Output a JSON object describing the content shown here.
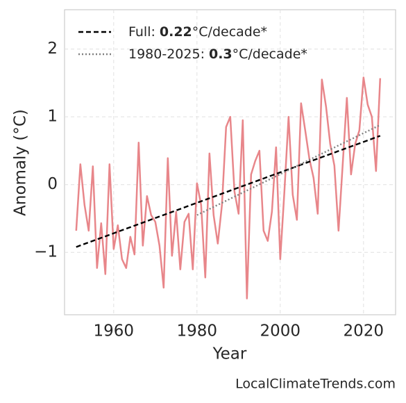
{
  "chart_data": {
    "type": "line",
    "xlabel": "Year",
    "ylabel": "Anomaly (°C)",
    "source": "LocalClimateTrends.com",
    "x": [
      1951,
      1952,
      1953,
      1954,
      1955,
      1956,
      1957,
      1958,
      1959,
      1960,
      1961,
      1962,
      1963,
      1964,
      1965,
      1966,
      1967,
      1968,
      1969,
      1970,
      1971,
      1972,
      1973,
      1974,
      1975,
      1976,
      1977,
      1978,
      1979,
      1980,
      1981,
      1982,
      1983,
      1984,
      1985,
      1986,
      1987,
      1988,
      1989,
      1990,
      1991,
      1992,
      1993,
      1994,
      1995,
      1996,
      1997,
      1998,
      1999,
      2000,
      2001,
      2002,
      2003,
      2004,
      2005,
      2006,
      2007,
      2008,
      2009,
      2010,
      2011,
      2012,
      2013,
      2014,
      2015,
      2016,
      2017,
      2018,
      2019,
      2020,
      2021,
      2022,
      2023,
      2024
    ],
    "series": [
      {
        "color": "#e8868a",
        "values": [
          -0.68,
          0.3,
          -0.3,
          -0.68,
          0.27,
          -1.23,
          -0.57,
          -1.32,
          0.3,
          -0.95,
          -0.6,
          -1.1,
          -1.23,
          -0.77,
          -1.03,
          0.62,
          -0.9,
          -0.17,
          -0.45,
          -0.55,
          -0.9,
          -1.52,
          0.39,
          -1.05,
          -0.4,
          -1.25,
          -0.55,
          -0.43,
          -1.25,
          0.02,
          -0.3,
          -1.37,
          0.46,
          -0.45,
          -0.87,
          -0.3,
          0.85,
          1.0,
          -0.1,
          -0.43,
          0.95,
          -1.68,
          0.15,
          0.35,
          0.5,
          -0.68,
          -0.83,
          -0.4,
          0.55,
          -1.1,
          -0.1,
          1.0,
          -0.15,
          -0.52,
          1.2,
          0.8,
          0.38,
          0.1,
          -0.43,
          1.55,
          1.15,
          0.6,
          0.28,
          -0.68,
          0.3,
          1.28,
          0.15,
          0.6,
          0.8,
          1.58,
          1.18,
          1.0,
          0.2,
          1.57
        ]
      }
    ],
    "trends": [
      {
        "label": "Full:",
        "rate": 0.22,
        "unit": "°C/decade*",
        "color": "#000000",
        "dash": "dashed",
        "x": [
          1951,
          2024
        ],
        "values": [
          -0.92,
          0.72
        ]
      },
      {
        "label": "1980-2025:",
        "rate": 0.3,
        "unit": "°C/decade*",
        "color": "#808080",
        "dash": "dotted",
        "x": [
          1980,
          2024
        ],
        "values": [
          -0.45,
          0.88
        ]
      }
    ],
    "xlim": [
      1948.2,
      2027.7
    ],
    "ylim": [
      -1.92,
      2.58
    ],
    "xticks": [
      1960,
      1980,
      2000,
      2020
    ],
    "yticks": [
      {
        "value": -1,
        "label": "−1"
      },
      0,
      1,
      2
    ],
    "grid": true
  }
}
